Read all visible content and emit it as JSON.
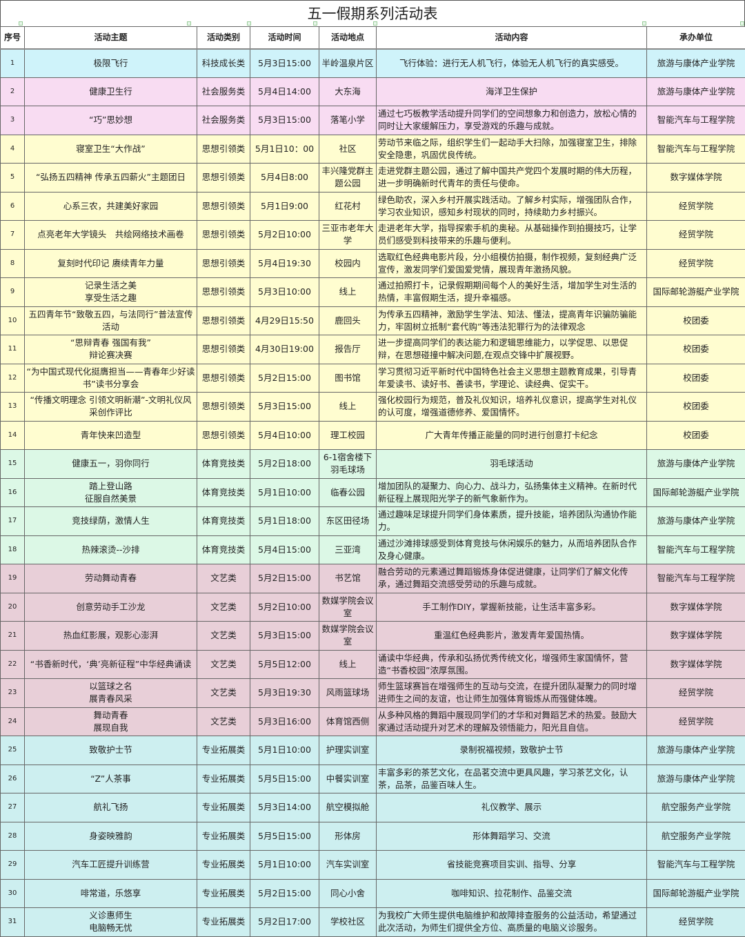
{
  "title": "五一假期系列活动表",
  "headers": [
    "序号",
    "活动主题",
    "活动类别",
    "活动时间",
    "活动地点",
    "活动内容",
    "承办单位"
  ],
  "category_colors": {
    "科技成长类": "#cff3fa",
    "社会服务类": "#f8dcf2",
    "思想引领类": "#fffdd0",
    "体育竞技类": "#dcf8e6",
    "文艺类": "#e8cfd8",
    "专业拓展类": "#cdeff0"
  },
  "rows": [
    [
      "1",
      "极限飞行",
      "科技成长类",
      "5月3日15:00",
      "半岭温泉片区",
      "飞行体验：进行无人机飞行，体验无人机飞行的真实感受。",
      "旅游与康体产业学院"
    ],
    [
      "2",
      "健康卫生行",
      "社会服务类",
      "5月4日14:00",
      "大东海",
      "海洋卫生保护",
      "旅游与康体产业学院"
    ],
    [
      "3",
      "“巧”思妙想",
      "社会服务类",
      "5月3日15:00",
      "落笔小学",
      "通过七巧板教学活动提升同学们的空间想象力和创造力，放松心情的同时让大家缓解压力，享受游戏的乐趣与成就。",
      "智能汽车与工程学院"
    ],
    [
      "4",
      "寝室卫生“大作战”",
      "思想引领类",
      "5月1日10：00",
      "社区",
      "劳动节来临之际，组织学生们一起动手大扫除，加强寝室卫生，排除安全隐患，巩固优良传统。",
      "智能汽车与工程学院"
    ],
    [
      "5",
      "“弘扬五四精神 传承五四薪火”主题团日",
      "思想引领类",
      "5月4日8:00",
      "丰兴隆党群主题公园",
      "走进党群主题公园，通过了解中国共产党四个发展时期的伟大历程，进一步明确新时代青年的责任与使命。",
      "数字媒体学院"
    ],
    [
      "6",
      "心系三农，共建美好家园",
      "思想引领类",
      "5月1日9:00",
      "红花村",
      "绿色助农，深入乡村开展实践活动。了解乡村实际，增强团队合作，学习农业知识，感知乡村现状的同时，持续助力乡村振兴。",
      "经贸学院"
    ],
    [
      "7",
      "点亮老年大学镜头　共绘网络技术画卷",
      "思想引领类",
      "5月2日10:00",
      "三亚市老年大学",
      "走进老年大学，指导探索手机的奥秘。从基础操作到拍摄技巧，让学员们感受到科技带来的乐趣与便利。",
      "经贸学院"
    ],
    [
      "8",
      "复刻时代印记 赓续青年力量",
      "思想引领类",
      "5月4日19:30",
      "校园内",
      "选取红色经典电影片段，分小组模仿拍摄，制作视频，复刻经典广泛宣传，激发同学们爱国爱党情，展现青年激扬风貌。",
      "经贸学院"
    ],
    [
      "9",
      "记录生活之美\n享受生活之趣",
      "思想引领类",
      "5月3日10:00",
      "线上",
      "通过拍照打卡，记录假期期间每个人的美好生活，增加学生对生活的热情，丰富假期生活，提升幸福感。",
      "国际邮轮游艇产业学院"
    ],
    [
      "10",
      "五四青年节“致敬五四，与法同行”普法宣传活动",
      "思想引领类",
      "4月29日15:50",
      "鹿回头",
      "为传承五四精神，激励学生学法、知法、懂法，提高青年识骗防骗能力，牢固树立抵制“套代购”等违法犯罪行为的法律观念",
      "校团委"
    ],
    [
      "11",
      "“思辩青春 强国有我”\n辩论赛决赛",
      "思想引领类",
      "4月30日19:00",
      "报告厅",
      "进一步提高同学们的表达能力和逻辑思维能力，以学促思、以思促辩，在思想碰撞中解决问题,在观点交锋中扩展视野。",
      "校团委"
    ],
    [
      "12",
      "“为中国式现代化挺膺担当——青春年少好读书”读书分享会",
      "思想引领类",
      "5月2日15:00",
      "图书馆",
      "学习贯彻习近平新时代中国特色社会主义思想主题教育成果，引导青年爱读书、读好书、善读书，学理论、读经典、促实干。",
      "校团委"
    ],
    [
      "13",
      "“传播文明理念 引领文明新潮”-文明礼仪风采创作评比",
      "思想引领类",
      "5月3日15:00",
      "线上",
      "强化校园行为规范，普及礼仪知识，培养礼仪意识，提高学生对礼仪的认可度，增强道德修养、爱国情怀。",
      "校团委"
    ],
    [
      "14",
      "青年快来凹造型",
      "思想引领类",
      "5月4日10:00",
      "理工校园",
      "广大青年传播正能量的同时进行创意打卡纪念",
      "校团委"
    ],
    [
      "15",
      "健康五一，羽你同行",
      "体育竞技类",
      "5月2日18:00",
      "6-1宿舍楼下羽毛球场",
      "羽毛球活动",
      "旅游与康体产业学院"
    ],
    [
      "16",
      "踏上登山路\n征服自然美景",
      "体育竞技类",
      "5月1日10:00",
      "临春公园",
      "增加团队的凝聚力、向心力、战斗力，弘扬集体主义精神。在新时代新征程上展现阳光学子的新气象新作为。",
      "国际邮轮游艇产业学院"
    ],
    [
      "17",
      "竞技绿荫，激情人生",
      "体育竞技类",
      "5月1日18:00",
      "东区田径场",
      "通过趣味足球提升同学们身体素质，提升技能，培养团队沟通协作能力。",
      "旅游与康体产业学院"
    ],
    [
      "18",
      "热辣滚烫--沙排",
      "体育竞技类",
      "5月4日15:00",
      "三亚湾",
      "通过沙滩排球感受到体育竞技与休闲娱乐的魅力，从而培养团队合作及身心健康。",
      "智能汽车与工程学院"
    ],
    [
      "19",
      "劳动舞动青春",
      "文艺类",
      "5月2日15:00",
      "书艺馆",
      "融合劳动的元素通过舞蹈锻炼身体促进健康，让同学们了解文化传承，通过舞蹈交流感受劳动的乐趣与成就。",
      "智能汽车与工程学院"
    ],
    [
      "20",
      "创意劳动手工沙龙",
      "文艺类",
      "5月2日10:00",
      "数媒学院会议室",
      "手工制作DIY，掌握新技能，让生活丰富多彩。",
      "数字媒体学院"
    ],
    [
      "21",
      "热血红影展，观影心澎湃",
      "文艺类",
      "5月3日15:00",
      "数媒学院会议室",
      "重温红色经典影片，激发青年爱国热情。",
      "数字媒体学院"
    ],
    [
      "22",
      "“书香新时代，‘典’亮新征程”中华经典诵读",
      "文艺类",
      "5月5日12:00",
      "线上",
      "诵读中华经典，传承和弘扬优秀传统文化，增强师生家国情怀，营造“书香校园”浓厚氛围。",
      "数字媒体学院"
    ],
    [
      "23",
      "以篮球之名\n展青春风采",
      "文艺类",
      "5月3日19:30",
      "风雨篮球场",
      "师生篮球赛旨在增强师生的互动与交流，在提升团队凝聚力的同时增进师生之间的友谊，也让师生加强体育锻炼从而强健体魄。",
      "经贸学院"
    ],
    [
      "24",
      "舞动青春\n展现自我",
      "文艺类",
      "5月3日16:00",
      "体育馆西侧",
      "从多种风格的舞蹈中展现同学们的才华和对舞蹈艺术的热爱。鼓励大家通过活动提升对艺术的理解及领悟能力，阳光且自信。",
      "经贸学院"
    ],
    [
      "25",
      "致敬护士节",
      "专业拓展类",
      "5月1日10:00",
      "护理实训室",
      "录制祝福视频，致敬护士节",
      "旅游与康体产业学院"
    ],
    [
      "26",
      "“Z”人茶事",
      "专业拓展类",
      "5月5日15:00",
      "中餐实训室",
      "丰富多彩的茶艺文化，在品茗交流中更具风趣，学习茶艺文化，认茶，品茶，品鉴百味人生。",
      "旅游与康体产业学院"
    ],
    [
      "27",
      "航礼飞扬",
      "专业拓展类",
      "5月3日14:00",
      "航空模拟舱",
      "礼仪教学、展示",
      "航空服务产业学院"
    ],
    [
      "28",
      "身姿映雅韵",
      "专业拓展类",
      "5月5日15:00",
      "形体房",
      "形体舞蹈学习、交流",
      "航空服务产业学院"
    ],
    [
      "29",
      "汽车工匠提升训练营",
      "专业拓展类",
      "5月1日10:00",
      "汽车实训室",
      "省技能竞赛项目实训、指导、分享",
      "智能汽车与工程学院"
    ],
    [
      "30",
      "啡常道，乐悠享",
      "专业拓展类",
      "5月2日15:00",
      "同心小舍",
      "咖啡知识、拉花制作、品鉴交流",
      "国际邮轮游艇产业学院"
    ],
    [
      "31",
      "义诊惠师生\n电脑畅无忧",
      "专业拓展类",
      "5月2日17:00",
      "学校社区",
      "为我校广大师生提供电脑维护和故障排查服务的公益活动，希望通过此次活动，为师生们提供全方位、高质量的电脑义诊服务。",
      "经贸学院"
    ]
  ]
}
